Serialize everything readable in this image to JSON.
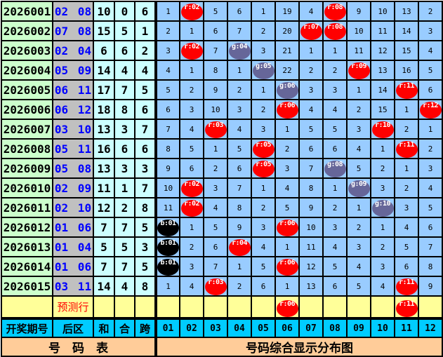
{
  "colors": {
    "red": "#ff0000",
    "gray": "#666699",
    "black": "#000000",
    "grid": "#99ccff",
    "issue": "#ccffcc",
    "back": "#c0c0c0",
    "stat": "#ccffff",
    "predict": "#ffff99",
    "header": "#00ccff",
    "footer": "#ffcc99"
  },
  "rows": [
    {
      "issue": "2026001",
      "back": "02 08",
      "sum": "10",
      "combo": "0",
      "span": "6",
      "cells": [
        "1",
        "r:02",
        "5",
        "6",
        "1",
        "19",
        "4",
        "r:08",
        "9",
        "10",
        "13",
        "2"
      ]
    },
    {
      "issue": "2026002",
      "back": "07 08",
      "sum": "15",
      "combo": "5",
      "span": "1",
      "cells": [
        "2",
        "1",
        "6",
        "7",
        "2",
        "20",
        "r:07",
        "r:08",
        "10",
        "11",
        "14",
        "3"
      ]
    },
    {
      "issue": "2026003",
      "back": "02 04",
      "sum": "6",
      "combo": "6",
      "span": "2",
      "cells": [
        "3",
        "r:02",
        "7",
        "g:04",
        "3",
        "21",
        "1",
        "1",
        "11",
        "12",
        "15",
        "4"
      ]
    },
    {
      "issue": "2026004",
      "back": "05 09",
      "sum": "14",
      "combo": "4",
      "span": "4",
      "cells": [
        "4",
        "1",
        "8",
        "1",
        "g:05",
        "22",
        "2",
        "2",
        "r:09",
        "13",
        "16",
        "5"
      ]
    },
    {
      "issue": "2026005",
      "back": "06 11",
      "sum": "17",
      "combo": "7",
      "span": "5",
      "cells": [
        "5",
        "2",
        "9",
        "2",
        "1",
        "g:06",
        "3",
        "3",
        "1",
        "14",
        "r:11",
        "6"
      ]
    },
    {
      "issue": "2026006",
      "back": "06 12",
      "sum": "18",
      "combo": "8",
      "span": "6",
      "cells": [
        "6",
        "3",
        "10",
        "3",
        "2",
        "r:06",
        "4",
        "4",
        "2",
        "15",
        "1",
        "r:12"
      ]
    },
    {
      "issue": "2026007",
      "back": "03 10",
      "sum": "13",
      "combo": "3",
      "span": "7",
      "cells": [
        "7",
        "4",
        "r:03",
        "4",
        "3",
        "1",
        "5",
        "5",
        "3",
        "r:10",
        "2",
        "1"
      ]
    },
    {
      "issue": "2026008",
      "back": "05 11",
      "sum": "16",
      "combo": "6",
      "span": "6",
      "cells": [
        "8",
        "5",
        "1",
        "5",
        "r:05",
        "2",
        "6",
        "6",
        "4",
        "1",
        "r:11",
        "2"
      ]
    },
    {
      "issue": "2026009",
      "back": "05 08",
      "sum": "13",
      "combo": "3",
      "span": "3",
      "cells": [
        "9",
        "6",
        "2",
        "6",
        "r:05",
        "3",
        "7",
        "g:08",
        "5",
        "2",
        "1",
        "3"
      ]
    },
    {
      "issue": "2026010",
      "back": "02 09",
      "sum": "11",
      "combo": "1",
      "span": "7",
      "cells": [
        "10",
        "r:02",
        "3",
        "7",
        "1",
        "4",
        "8",
        "1",
        "g:09",
        "3",
        "2",
        "4"
      ]
    },
    {
      "issue": "2026011",
      "back": "02 10",
      "sum": "12",
      "combo": "2",
      "span": "8",
      "cells": [
        "11",
        "r:02",
        "4",
        "8",
        "2",
        "5",
        "9",
        "2",
        "1",
        "g:10",
        "3",
        "5"
      ]
    },
    {
      "issue": "2026012",
      "back": "01 06",
      "sum": "7",
      "combo": "7",
      "span": "5",
      "cells": [
        "b:01",
        "1",
        "5",
        "9",
        "3",
        "r:06",
        "10",
        "3",
        "2",
        "1",
        "4",
        "6"
      ]
    },
    {
      "issue": "2026013",
      "back": "01 04",
      "sum": "5",
      "combo": "5",
      "span": "3",
      "cells": [
        "b:01",
        "2",
        "6",
        "r:04",
        "4",
        "1",
        "11",
        "4",
        "3",
        "2",
        "5",
        "7"
      ]
    },
    {
      "issue": "2026014",
      "back": "01 06",
      "sum": "7",
      "combo": "7",
      "span": "5",
      "cells": [
        "b:01",
        "3",
        "7",
        "1",
        "5",
        "r:06",
        "12",
        "5",
        "4",
        "3",
        "6",
        "8"
      ]
    },
    {
      "issue": "2026015",
      "back": "03 11",
      "sum": "14",
      "combo": "4",
      "span": "8",
      "cells": [
        "1",
        "4",
        "r:03",
        "2",
        "6",
        "1",
        "13",
        "6",
        "5",
        "4",
        "r:11",
        "9"
      ]
    }
  ],
  "prediction": {
    "label": "预测行",
    "cells": [
      "",
      "",
      "",
      "",
      "",
      "r:06",
      "",
      "",
      "",
      "",
      "r:11",
      ""
    ]
  },
  "header": {
    "issue": "开奖期号",
    "back": "后区",
    "sum": "和",
    "combo": "合",
    "span": "跨",
    "numbers": [
      "01",
      "02",
      "03",
      "04",
      "05",
      "06",
      "07",
      "08",
      "09",
      "10",
      "11",
      "12"
    ]
  },
  "footer": {
    "left": "号　码　表",
    "right": "号码综合显示分布图"
  }
}
